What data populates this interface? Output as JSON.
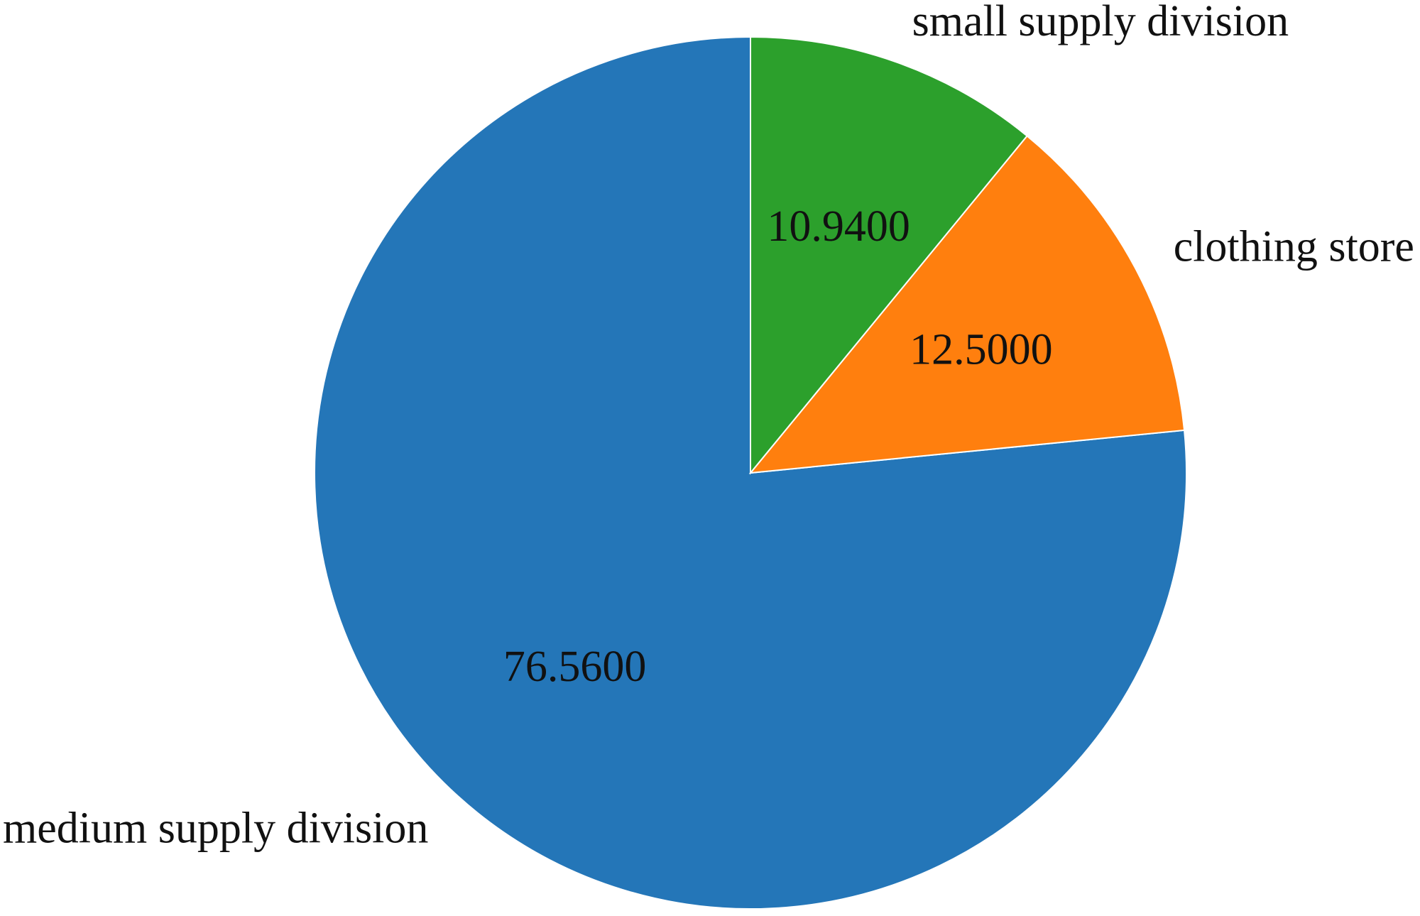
{
  "chart_data": {
    "type": "pie",
    "title": "",
    "start_angle_deg": 90,
    "direction": "counterclockwise",
    "slices": [
      {
        "category": "medium supply division",
        "value": 76.56,
        "value_label": "76.5600",
        "color": "#2476B8"
      },
      {
        "category": "clothing store",
        "value": 12.5,
        "value_label": "12.5000",
        "color": "#FF7F0E"
      },
      {
        "category": "small supply division",
        "value": 10.94,
        "value_label": "10.9400",
        "color": "#2CA02C"
      }
    ]
  }
}
